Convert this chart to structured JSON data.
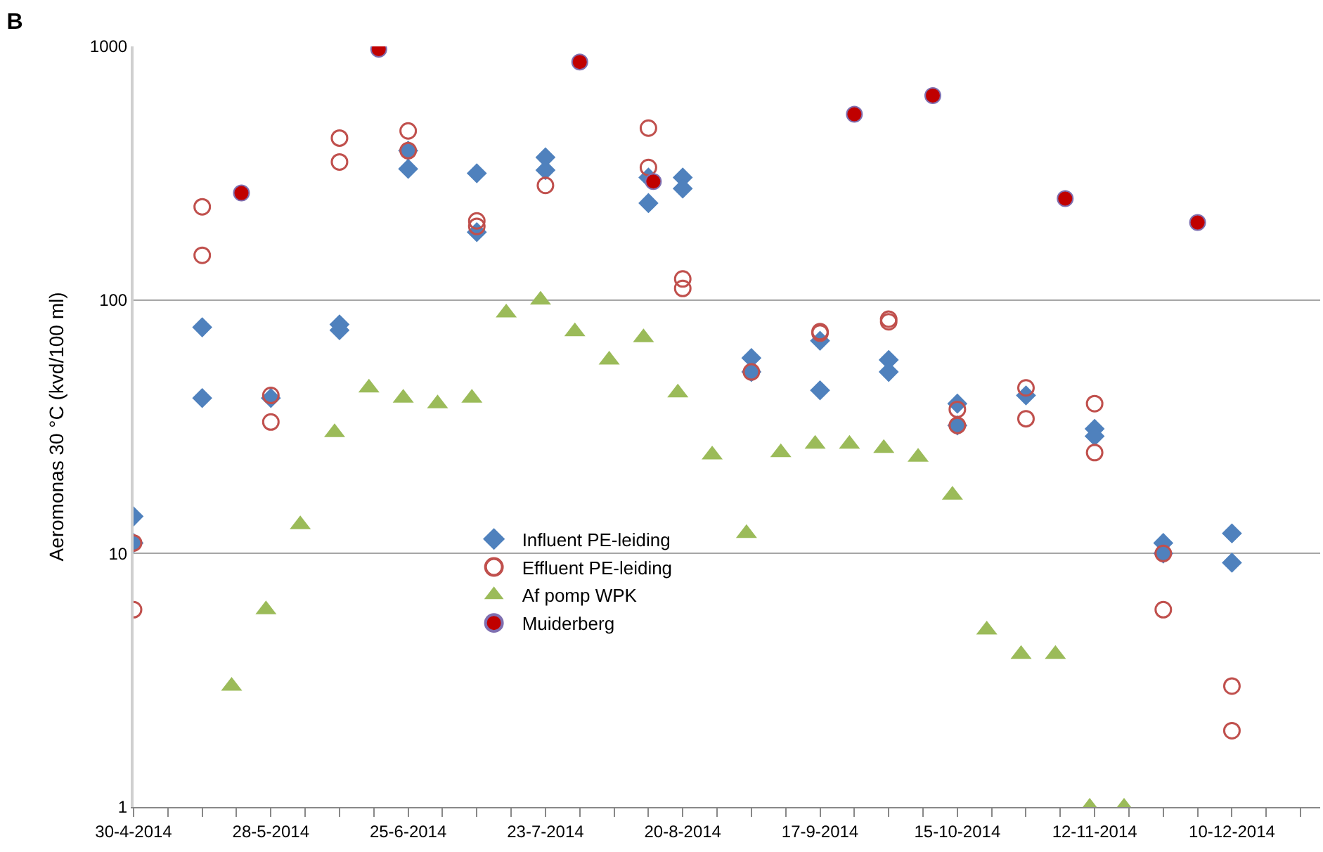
{
  "chart_data": {
    "type": "scatter",
    "title": "B",
    "ylabel": "Aeromonas 30 °C (kvd/100 ml)",
    "log": "y",
    "grid": "y",
    "legend": "bottom",
    "xlim": [
      "2014-04-30",
      "2014-12-28"
    ],
    "xticks": [
      {
        "value": "2014-04-30",
        "label": "30-4-2014"
      },
      {
        "value": "2014-05-07",
        "label": null
      },
      {
        "value": "2014-05-14",
        "label": null
      },
      {
        "value": "2014-05-21",
        "label": null
      },
      {
        "value": "2014-05-28",
        "label": "28-5-2014"
      },
      {
        "value": "2014-06-04",
        "label": null
      },
      {
        "value": "2014-06-11",
        "label": null
      },
      {
        "value": "2014-06-18",
        "label": null
      },
      {
        "value": "2014-06-25",
        "label": "25-6-2014"
      },
      {
        "value": "2014-07-02",
        "label": null
      },
      {
        "value": "2014-07-09",
        "label": null
      },
      {
        "value": "2014-07-16",
        "label": null
      },
      {
        "value": "2014-07-23",
        "label": "23-7-2014"
      },
      {
        "value": "2014-07-30",
        "label": null
      },
      {
        "value": "2014-08-06",
        "label": null
      },
      {
        "value": "2014-08-13",
        "label": null
      },
      {
        "value": "2014-08-20",
        "label": "20-8-2014"
      },
      {
        "value": "2014-08-27",
        "label": null
      },
      {
        "value": "2014-09-03",
        "label": null
      },
      {
        "value": "2014-09-10",
        "label": null
      },
      {
        "value": "2014-09-17",
        "label": "17-9-2014"
      },
      {
        "value": "2014-09-24",
        "label": null
      },
      {
        "value": "2014-10-01",
        "label": null
      },
      {
        "value": "2014-10-08",
        "label": null
      },
      {
        "value": "2014-10-15",
        "label": "15-10-2014"
      },
      {
        "value": "2014-10-22",
        "label": null
      },
      {
        "value": "2014-10-29",
        "label": null
      },
      {
        "value": "2014-11-05",
        "label": null
      },
      {
        "value": "2014-11-12",
        "label": "12-11-2014"
      },
      {
        "value": "2014-11-19",
        "label": null
      },
      {
        "value": "2014-11-26",
        "label": null
      },
      {
        "value": "2014-12-03",
        "label": null
      },
      {
        "value": "2014-12-10",
        "label": "10-12-2014"
      },
      {
        "value": "2014-12-17",
        "label": null
      },
      {
        "value": "2014-12-24",
        "label": null
      }
    ],
    "ylim": [
      1,
      1000
    ],
    "yticks": [
      1,
      10,
      100,
      1000
    ],
    "series": [
      {
        "name": "Influent PE-leiding",
        "color": "#4f81bd",
        "marker": "diamond",
        "x": [
          "2014-04-30",
          "2014-04-30",
          "2014-05-14",
          "2014-05-14",
          "2014-05-28",
          "2014-06-11",
          "2014-06-11",
          "2014-06-25",
          "2014-06-25",
          "2014-07-09",
          "2014-07-09",
          "2014-07-23",
          "2014-07-23",
          "2014-08-13",
          "2014-08-13",
          "2014-08-20",
          "2014-08-20",
          "2014-09-03",
          "2014-09-03",
          "2014-09-17",
          "2014-09-17",
          "2014-10-01",
          "2014-10-01",
          "2014-10-15",
          "2014-10-15",
          "2014-10-29",
          "2014-11-12",
          "2014-11-12",
          "2014-11-26",
          "2014-11-26",
          "2014-12-10",
          "2014-12-10"
        ],
        "values": [
          14,
          11,
          78,
          41,
          41,
          80,
          76,
          329,
          388,
          316,
          185,
          365,
          325,
          304,
          241,
          304,
          275,
          59,
          52,
          69,
          44,
          58,
          52,
          39,
          32,
          42,
          31,
          29,
          11,
          10,
          12,
          9.2
        ]
      },
      {
        "name": "Effluent PE-leiding",
        "color": "#c0504d",
        "marker": "circle-open",
        "x": [
          "2014-04-30",
          "2014-04-30",
          "2014-05-14",
          "2014-05-14",
          "2014-05-28",
          "2014-05-28",
          "2014-06-11",
          "2014-06-11",
          "2014-06-25",
          "2014-06-25",
          "2014-07-09",
          "2014-07-09",
          "2014-07-23",
          "2014-08-13",
          "2014-08-13",
          "2014-08-20",
          "2014-08-20",
          "2014-09-03",
          "2014-09-17",
          "2014-09-17",
          "2014-10-01",
          "2014-10-01",
          "2014-10-15",
          "2014-10-15",
          "2014-10-29",
          "2014-10-29",
          "2014-11-12",
          "2014-11-12",
          "2014-11-26",
          "2014-11-26",
          "2014-12-10",
          "2014-12-10"
        ],
        "values": [
          11,
          6,
          233,
          150,
          42,
          33,
          435,
          350,
          464,
          388,
          205,
          195,
          283,
          476,
          333,
          121,
          111,
          52,
          75,
          74,
          84,
          82,
          37,
          32,
          45,
          34,
          39,
          25,
          10,
          6,
          3,
          2
        ]
      },
      {
        "name": "Af pomp WPK",
        "color": "#9bbb59",
        "marker": "triangle",
        "x": [
          "2014-05-20",
          "2014-05-27",
          "2014-06-03",
          "2014-06-10",
          "2014-06-17",
          "2014-06-24",
          "2014-07-01",
          "2014-07-08",
          "2014-07-15",
          "2014-07-22",
          "2014-07-29",
          "2014-08-05",
          "2014-08-12",
          "2014-08-19",
          "2014-08-26",
          "2014-09-02",
          "2014-09-09",
          "2014-09-16",
          "2014-09-23",
          "2014-09-30",
          "2014-10-07",
          "2014-10-14",
          "2014-10-21",
          "2014-10-28",
          "2014-11-04",
          "2014-11-11",
          "2014-11-18"
        ],
        "values": [
          3,
          6,
          13,
          30,
          45,
          41,
          39,
          41,
          89,
          100,
          75,
          58,
          71,
          43,
          24.5,
          12,
          25,
          27,
          27,
          26,
          24,
          17,
          5,
          4,
          4,
          1,
          1
        ]
      },
      {
        "name": "Muiderberg",
        "color": "#c00000",
        "marker": "circle",
        "x": [
          "2014-05-22",
          "2014-06-19",
          "2014-07-30",
          "2014-08-14",
          "2014-09-24",
          "2014-10-10",
          "2014-11-06",
          "2014-12-03"
        ],
        "values": [
          264,
          975,
          868,
          293,
          540,
          640,
          251,
          202
        ]
      }
    ]
  }
}
